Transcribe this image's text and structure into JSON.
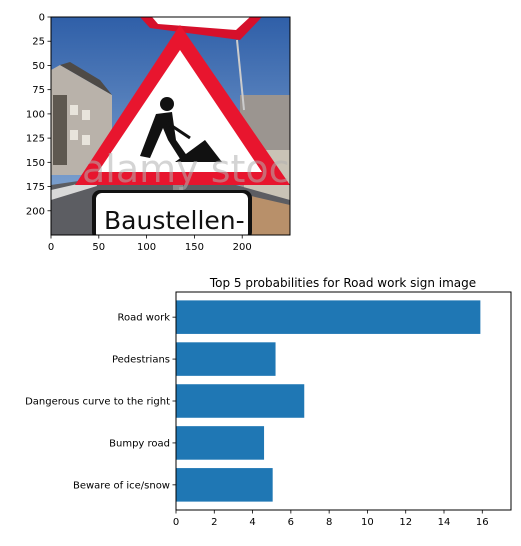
{
  "chart_data": [
    {
      "type": "image",
      "description_label": "Road work sign photo",
      "x_ticks": [
        0,
        50,
        100,
        150,
        200
      ],
      "y_ticks": [
        0,
        25,
        50,
        75,
        100,
        125,
        150,
        175,
        200
      ],
      "xlim": [
        0,
        250
      ],
      "ylim": [
        0,
        225
      ],
      "sign_text": "Baustellen-",
      "watermark": "alamy stock"
    },
    {
      "type": "bar",
      "orientation": "horizontal",
      "title": "Top 5 probabilities for Road work sign image",
      "categories": [
        "Road work",
        "Pedestrians",
        "Dangerous curve to the right",
        "Bumpy road",
        "Beware of ice/snow"
      ],
      "values": [
        15.9,
        5.2,
        6.7,
        4.6,
        5.05
      ],
      "xlim": [
        0,
        17.5
      ],
      "x_ticks": [
        0,
        2,
        4,
        6,
        8,
        10,
        12,
        14,
        16
      ],
      "bar_color": "#1f77b4"
    }
  ]
}
